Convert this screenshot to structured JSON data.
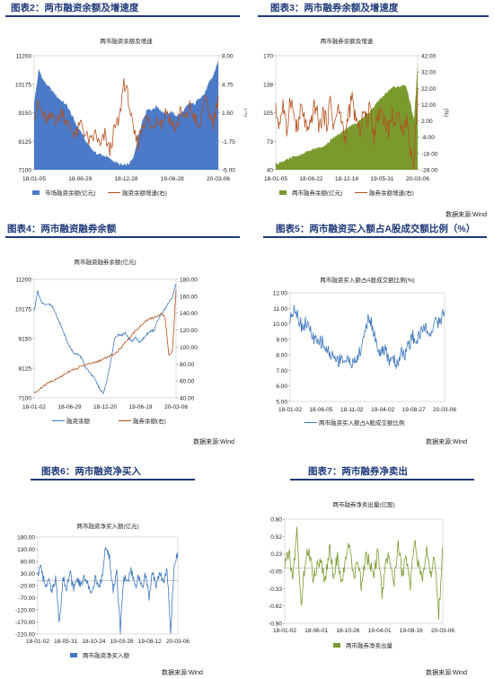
{
  "colors": {
    "title": "#1f3a7a",
    "blue_area": "#4a7ac8",
    "orange_line": "#b5501e",
    "olive_area": "#7a9a2e",
    "blue_line": "#3f78bf",
    "grid": "#d9d9d9"
  },
  "panels": [
    {
      "title": "图表2：两市融资余额及增速度",
      "source": "",
      "chart": {
        "type": "area",
        "title": "两市融资余额及增速",
        "x_ticks": [
          "18-01-05",
          "18-06-29",
          "18-12-28",
          "19-06-28",
          "20-03-06"
        ],
        "y_left_ticks": [
          "7100",
          "8125",
          "9150",
          "10175",
          "11200"
        ],
        "y_right_ticks": [
          "-5.00",
          "-1.75",
          "1.50",
          "4.75",
          "8.00"
        ],
        "y_right_label": "(%)",
        "ylim": [
          7100,
          11200
        ],
        "y2lim": [
          -5,
          8
        ],
        "legend": [
          "市场融资余额(亿元)",
          "融资余额增速(右)"
        ],
        "series": [
          {
            "name": "市场融资余额(亿元)",
            "kind": "area",
            "axis": "left",
            "values": [
              9500,
              10700,
              10300,
              10100,
              9900,
              9700,
              9550,
              9400,
              9050,
              8700,
              8450,
              8100,
              7900,
              7700,
              7650,
              7600,
              7500,
              7400,
              7300,
              7250,
              7300,
              7500,
              8300,
              8900,
              9300,
              9250,
              9400,
              9200,
              9100,
              9200,
              9050,
              9100,
              9300,
              9500,
              9450,
              9700,
              9800,
              10200,
              10500,
              11050
            ]
          },
          {
            "name": "融资余额增速(右)",
            "kind": "line",
            "axis": "right",
            "values": [
              1.5,
              2.4,
              1.0,
              0.5,
              1.2,
              0.6,
              1.8,
              0.2,
              -0.5,
              -1.0,
              0.4,
              -1.2,
              -2.0,
              -0.8,
              -2.5,
              -1.0,
              -3.0,
              -0.4,
              0.5,
              5.2,
              3.0,
              -0.8,
              -2.0,
              0.3,
              0.8,
              -0.5,
              1.2,
              0.2,
              1.8,
              0.5,
              -0.3,
              1.5,
              0.6,
              2.2,
              0.9,
              -0.5,
              3.1,
              1.6,
              0.4,
              3.4
            ]
          }
        ]
      }
    },
    {
      "title": "图表3：两市融券余额及增速度",
      "source": "数据来源:Wind",
      "chart": {
        "type": "area",
        "title": "两市融券余额及增速",
        "x_ticks": [
          "18-01-05",
          "18-06-22",
          "18-12-14",
          "19-05-31",
          "20-03-06"
        ],
        "y_left_ticks": [
          "40",
          "73",
          "105",
          "138",
          "170"
        ],
        "y_right_ticks": [
          "-28.00",
          "-18.00",
          "-8.00",
          "2.00",
          "12.00",
          "22.00",
          "32.00",
          "42.00"
        ],
        "y_right_label": "(%)",
        "ylim": [
          40,
          170
        ],
        "y2lim": [
          -28,
          42
        ],
        "legend": [
          "两市融券余额(亿元)",
          "融券余额增速(右)"
        ],
        "series": [
          {
            "name": "两市融券余额(亿元)",
            "kind": "area",
            "axis": "left",
            "values": [
              47,
              48,
              50,
              51,
              53,
              55,
              56,
              57,
              59,
              61,
              63,
              64,
              66,
              67,
              69,
              73,
              77,
              80,
              82,
              85,
              89,
              91,
              92,
              96,
              100,
              103,
              107,
              112,
              117,
              122,
              126,
              130,
              134,
              134,
              135,
              137,
              133,
              116,
              96,
              160
            ]
          },
          {
            "name": "融券余额增速(右)",
            "kind": "line",
            "axis": "right",
            "values": [
              8,
              0,
              12,
              -6,
              18,
              5,
              -4,
              10,
              2,
              -8,
              6,
              12,
              -3,
              7,
              0,
              14,
              -2,
              9,
              4,
              -10,
              6,
              15,
              3,
              -5,
              8,
              1,
              11,
              -7,
              5,
              9,
              2,
              -4,
              6,
              0,
              4,
              -2,
              3,
              -15,
              -25,
              22
            ]
          }
        ]
      }
    },
    {
      "title": "图表4：两市融资融券余额",
      "source": "数据来源:Wind",
      "chart": {
        "type": "line",
        "title": "两市融资融券余额(亿元)",
        "x_ticks": [
          "18-01-02",
          "18-06-29",
          "18-12-20",
          "19-06-19",
          "20-03-06"
        ],
        "y_left_ticks": [
          "7100",
          "8125",
          "9150",
          "10175",
          "11200"
        ],
        "y_right_ticks": [
          "40.00",
          "60.00",
          "80.00",
          "100.00",
          "120.00",
          "140.00",
          "160.00",
          "180.00"
        ],
        "ylim": [
          7100,
          11200
        ],
        "y2lim": [
          40,
          180
        ],
        "legend": [
          "融资余额",
          "融券余额(右)"
        ],
        "series": [
          {
            "name": "融资余额",
            "kind": "line",
            "axis": "left",
            "values": [
              10100,
              10800,
              10400,
              10300,
              10350,
              10250,
              10000,
              9700,
              9400,
              9100,
              8800,
              8650,
              8600,
              8500,
              8200,
              8000,
              7850,
              7700,
              7400,
              7250,
              7700,
              8300,
              9100,
              9300,
              9250,
              9350,
              9150,
              9050,
              9200,
              9000,
              9150,
              9300,
              9400,
              9450,
              9800,
              10000,
              10200,
              10400,
              10600,
              11050
            ]
          },
          {
            "name": "融券余额(右)",
            "kind": "line",
            "axis": "right",
            "values": [
              46,
              48,
              52,
              55,
              58,
              60,
              62,
              64,
              67,
              70,
              72,
              74,
              75,
              78,
              79,
              80,
              81,
              82,
              84,
              86,
              88,
              90,
              92,
              95,
              100,
              105,
              110,
              115,
              120,
              124,
              128,
              132,
              134,
              135,
              137,
              140,
              135,
              90,
              95,
              168
            ]
          }
        ]
      }
    },
    {
      "title": "图表5：两市融资买入额占A股成交额比例（%）",
      "source": "数据来源:Wind",
      "chart": {
        "type": "line",
        "title": "两市融资买入额占A股成交额比例(%)",
        "x_ticks": [
          "18-01-02",
          "18-06-05",
          "18-11-02",
          "19-04-02",
          "19-08-27",
          "20-03-06"
        ],
        "y_left_ticks": [
          "5.00",
          "6.00",
          "7.00",
          "8.00",
          "9.00",
          "10.00",
          "11.00",
          "12.00"
        ],
        "ylim": [
          5,
          12
        ],
        "legend": [
          "两市融资买入额占A股成交额比例"
        ],
        "series": [
          {
            "name": "两市融资买入额占A股成交额比例",
            "kind": "line",
            "axis": "left",
            "values": [
              10.2,
              11.2,
              10.5,
              9.8,
              10.1,
              9.6,
              9.0,
              8.7,
              8.9,
              8.4,
              8.1,
              7.9,
              7.6,
              7.9,
              7.5,
              7.8,
              7.3,
              7.9,
              8.3,
              9.8,
              10.4,
              9.6,
              8.5,
              8.1,
              8.3,
              7.6,
              7.9,
              7.3,
              8.3,
              8.0,
              8.6,
              9.2,
              8.9,
              9.5,
              9.8,
              9.2,
              9.9,
              10.1,
              10.3,
              10.8
            ]
          }
        ]
      }
    },
    {
      "title": "图表6：两市融资净买入",
      "source": "数据来源:Wind",
      "chart": {
        "type": "line",
        "title": "两市融资净买入额(亿元)",
        "x_ticks": [
          "18-01-02",
          "18-05-31",
          "18-10-24",
          "19-03-28",
          "19-08-12",
          "20-03-06"
        ],
        "y_left_ticks": [
          "-220.00",
          "-170.00",
          "-120.00",
          "-70.00",
          "-20.00",
          "30.00",
          "80.00",
          "130.00",
          "180.00"
        ],
        "ylim": [
          -220,
          180
        ],
        "legend": [
          "两市融资净买入额"
        ],
        "series": [
          {
            "name": "两市融资净买入额",
            "kind": "line",
            "axis": "left",
            "values": [
              15,
              60,
              -30,
              20,
              -45,
              5,
              -170,
              10,
              -25,
              30,
              -35,
              0,
              -20,
              15,
              -10,
              -50,
              5,
              -30,
              20,
              150,
              90,
              -40,
              35,
              -200,
              20,
              -15,
              40,
              -25,
              10,
              -30,
              25,
              -60,
              30,
              -10,
              45,
              -20,
              55,
              -205,
              75,
              120
            ]
          }
        ]
      }
    },
    {
      "title": "图表7：两市融券净卖出",
      "source": "数据来源:Wind",
      "chart": {
        "type": "line",
        "title": "两市融券净卖出量(亿股)",
        "x_ticks": [
          "18-01-02",
          "18-06-01",
          "18-10-26",
          "19-04-01",
          "19-08-16",
          "20-03-06"
        ],
        "y_left_ticks": [
          "-0.90",
          "-0.62",
          "-0.33",
          "-0.05",
          "0.23",
          "0.52",
          "0.80"
        ],
        "ylim": [
          -0.9,
          0.8
        ],
        "legend": [
          "两市融券净卖出量"
        ],
        "series": [
          {
            "name": "两市融券净卖出量",
            "kind": "line",
            "axis": "left",
            "values": [
              0.05,
              0.25,
              -0.15,
              0.6,
              -0.62,
              0.1,
              0.3,
              -0.2,
              0.05,
              0.15,
              -0.25,
              0.35,
              -0.1,
              0.2,
              -0.3,
              0.1,
              0.45,
              -0.15,
              0.1,
              -0.35,
              0.25,
              0.05,
              -0.1,
              0.3,
              -0.45,
              0.2,
              0.1,
              -0.2,
              0.35,
              -0.1,
              0.15,
              -0.3,
              0.5,
              0.05,
              -0.25,
              0.3,
              -0.1,
              0.2,
              -0.8,
              0.35
            ]
          }
        ]
      }
    }
  ]
}
